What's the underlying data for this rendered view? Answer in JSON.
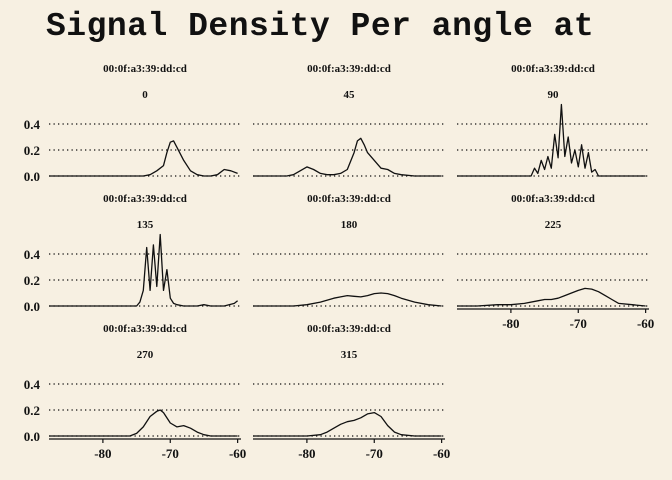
{
  "chart_data": {
    "type": "area",
    "title": "Signal Density Per angle at",
    "xlabel": "",
    "ylabel": "",
    "xlim": [
      -88,
      -59.5
    ],
    "ylim": [
      0,
      0.5
    ],
    "y_ticks": [
      0.0,
      0.2,
      0.4
    ],
    "y_tick_labels": [
      "0.0",
      "0.2",
      "0.4"
    ],
    "x_ticks": [
      -80,
      -70,
      -60
    ],
    "x_tick_labels": [
      "-80",
      "-70",
      "-60"
    ],
    "grid": "horizontal dotted",
    "facets": [
      {
        "strip": [
          "00:0f:a3:39:dd:cd",
          "0"
        ],
        "x": [
          -88,
          -74,
          -73,
          -72,
          -71,
          -70.5,
          -70,
          -69.5,
          -69,
          -68,
          -67,
          -66,
          -65,
          -64,
          -63,
          -62,
          -61,
          -60
        ],
        "y": [
          0,
          0,
          0.01,
          0.04,
          0.08,
          0.18,
          0.26,
          0.27,
          0.22,
          0.12,
          0.04,
          0.01,
          0,
          0,
          0.01,
          0.05,
          0.04,
          0.02
        ]
      },
      {
        "strip": [
          "00:0f:a3:39:dd:cd",
          "45"
        ],
        "x": [
          -88,
          -83,
          -82,
          -81,
          -80,
          -79,
          -78,
          -77,
          -76,
          -75,
          -74,
          -73,
          -72.5,
          -72,
          -71.5,
          -71,
          -70,
          -69,
          -68,
          -67,
          -66,
          -64,
          -60
        ],
        "y": [
          0,
          0,
          0.01,
          0.04,
          0.07,
          0.05,
          0.02,
          0.01,
          0.01,
          0.02,
          0.05,
          0.18,
          0.27,
          0.29,
          0.24,
          0.18,
          0.12,
          0.06,
          0.05,
          0.02,
          0.01,
          0,
          0
        ]
      },
      {
        "strip": [
          "00:0f:a3:39:dd:cd",
          "90"
        ],
        "x": [
          -88,
          -77,
          -76.5,
          -76,
          -75.5,
          -75,
          -74.5,
          -74,
          -73.5,
          -73,
          -72.5,
          -72,
          -71.5,
          -71,
          -70.5,
          -70,
          -69.5,
          -69,
          -68.5,
          -68,
          -67.5,
          -67,
          -60
        ],
        "y": [
          0,
          0,
          0.06,
          0.02,
          0.12,
          0.05,
          0.15,
          0.06,
          0.32,
          0.14,
          0.55,
          0.15,
          0.3,
          0.1,
          0.2,
          0.07,
          0.24,
          0.06,
          0.18,
          0.03,
          0.05,
          0,
          0
        ]
      },
      {
        "strip": [
          "00:0f:a3:39:dd:cd",
          "135"
        ],
        "x": [
          -88,
          -75,
          -74.5,
          -74,
          -73.5,
          -73,
          -72.5,
          -72,
          -71.5,
          -71,
          -70.5,
          -70,
          -69.5,
          -69,
          -68,
          -66,
          -65,
          -64,
          -62,
          -60.5,
          -60
        ],
        "y": [
          0,
          0,
          0.03,
          0.12,
          0.45,
          0.12,
          0.47,
          0.15,
          0.55,
          0.12,
          0.28,
          0.06,
          0.02,
          0.01,
          0,
          0,
          0.01,
          0,
          0,
          0.02,
          0.04
        ]
      },
      {
        "strip": [
          "00:0f:a3:39:dd:cd",
          "180"
        ],
        "x": [
          -88,
          -82,
          -80,
          -78,
          -76,
          -75,
          -74,
          -73,
          -72,
          -71,
          -70,
          -69,
          -68,
          -67,
          -66,
          -64,
          -62,
          -60
        ],
        "y": [
          0,
          0,
          0.01,
          0.03,
          0.06,
          0.07,
          0.08,
          0.075,
          0.07,
          0.08,
          0.095,
          0.1,
          0.095,
          0.08,
          0.06,
          0.03,
          0.01,
          0
        ]
      },
      {
        "strip": [
          "00:0f:a3:39:dd:cd",
          "225"
        ],
        "x": [
          -88,
          -85,
          -82,
          -80,
          -78,
          -76,
          -75,
          -74,
          -73,
          -72,
          -71,
          -70,
          -69,
          -68,
          -67,
          -66,
          -65,
          -64,
          -62,
          -60
        ],
        "y": [
          0,
          0,
          0.01,
          0.01,
          0.02,
          0.04,
          0.05,
          0.05,
          0.06,
          0.08,
          0.1,
          0.12,
          0.135,
          0.13,
          0.11,
          0.08,
          0.05,
          0.02,
          0.01,
          0
        ]
      },
      {
        "strip": [
          "00:0f:a3:39:dd:cd",
          "270"
        ],
        "x": [
          -88,
          -76,
          -75,
          -74,
          -73,
          -72,
          -71.5,
          -71,
          -70,
          -69,
          -68,
          -67,
          -66,
          -65,
          -64,
          -60
        ],
        "y": [
          0,
          0,
          0.02,
          0.07,
          0.15,
          0.19,
          0.2,
          0.18,
          0.1,
          0.07,
          0.08,
          0.06,
          0.03,
          0.01,
          0,
          0
        ]
      },
      {
        "strip": [
          "00:0f:a3:39:dd:cd",
          "315"
        ],
        "x": [
          -88,
          -80,
          -78,
          -77,
          -76,
          -75,
          -74,
          -73,
          -72,
          -71,
          -70,
          -69,
          -68,
          -67,
          -66,
          -64,
          -60
        ],
        "y": [
          0,
          0,
          0.01,
          0.03,
          0.06,
          0.09,
          0.11,
          0.12,
          0.14,
          0.17,
          0.18,
          0.15,
          0.08,
          0.03,
          0.01,
          0,
          0
        ]
      }
    ]
  }
}
